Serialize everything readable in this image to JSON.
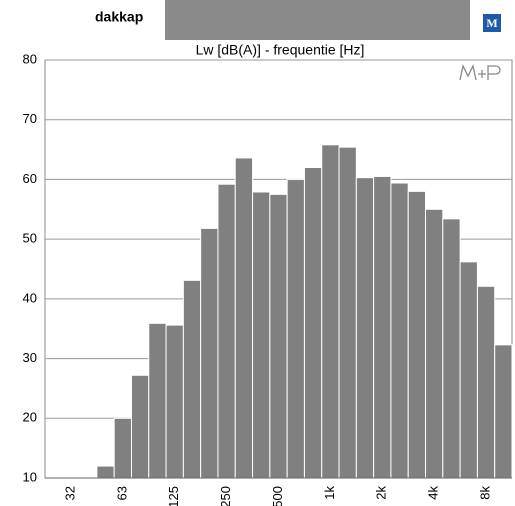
{
  "header": {
    "title": "dakkap",
    "logo": "M"
  },
  "chart_data": {
    "type": "bar",
    "title": "Lw [dB(A)] - frequentie [Hz]",
    "categories": [
      null,
      "32",
      null,
      null,
      "63",
      null,
      null,
      "125",
      null,
      null,
      "250",
      null,
      null,
      "500",
      null,
      null,
      "1k",
      null,
      null,
      "2k",
      null,
      null,
      "4k",
      null,
      null,
      "8k",
      null
    ],
    "values": [
      10,
      10,
      10,
      12,
      20,
      27.2,
      35.9,
      35.6,
      43.1,
      51.8,
      59.2,
      63.6,
      57.9,
      57.5,
      60,
      62,
      65.8,
      65.4,
      60.3,
      60.5,
      59.4,
      58,
      55,
      53.4,
      46.2,
      42.1,
      32.3
    ],
    "color": "#808080",
    "ylim": [
      10,
      80
    ],
    "yticks": [
      10,
      20,
      30,
      40,
      50,
      60,
      70,
      80
    ],
    "grid": true
  }
}
